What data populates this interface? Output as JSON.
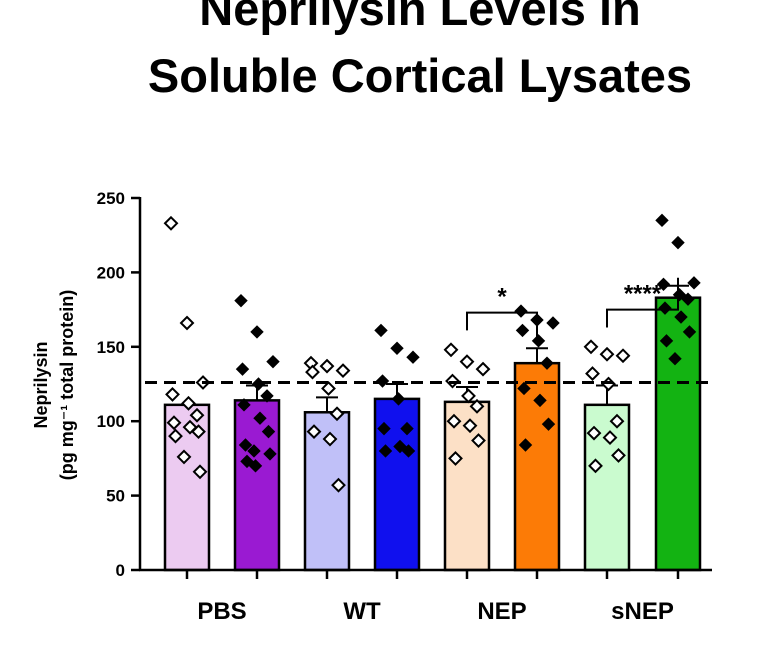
{
  "chart_data": {
    "type": "bar",
    "title_lines": [
      "Neprilysin Levels in",
      "Soluble Cortical Lysates"
    ],
    "ylabel_line1": "Neprilysin",
    "ylabel_line2": "(pg mg⁻¹ total protein)",
    "ylim": [
      0,
      250
    ],
    "yticks": [
      "0",
      "50",
      "100",
      "150",
      "200",
      "250"
    ],
    "categories": [
      "PBS",
      "WT",
      "NEP",
      "sNEP"
    ],
    "reference_line": 126,
    "bars": [
      {
        "group": "PBS",
        "fill": "#eccbf1",
        "marker": "open",
        "mean": 111,
        "sem": 0,
        "points": [
          233,
          166,
          126,
          118,
          112,
          104,
          99,
          96,
          93,
          90,
          76,
          66
        ]
      },
      {
        "group": "PBS",
        "fill": "#9a1ad2",
        "marker": "filled",
        "mean": 114,
        "sem": 10,
        "points": [
          181,
          160,
          140,
          135,
          125,
          117,
          111,
          102,
          93,
          84,
          80,
          78,
          73,
          70
        ]
      },
      {
        "group": "WT",
        "fill": "#c0c0f8",
        "marker": "open",
        "mean": 106,
        "sem": 10,
        "points": [
          139,
          137,
          134,
          133,
          122,
          105,
          93,
          88,
          57
        ]
      },
      {
        "group": "WT",
        "fill": "#1010ee",
        "marker": "filled",
        "mean": 115,
        "sem": 10,
        "points": [
          161,
          149,
          143,
          127,
          115,
          95,
          95,
          83,
          80,
          80
        ]
      },
      {
        "group": "NEP",
        "fill": "#fce0c6",
        "marker": "open",
        "mean": 113,
        "sem": 10,
        "points": [
          148,
          140,
          135,
          127,
          117,
          110,
          100,
          97,
          87,
          75
        ]
      },
      {
        "group": "NEP",
        "fill": "#fc7b06",
        "marker": "filled",
        "mean": 139,
        "sem": 10,
        "points": [
          174,
          168,
          166,
          161,
          154,
          139,
          122,
          114,
          98,
          84
        ]
      },
      {
        "group": "sNEP",
        "fill": "#cafbcf",
        "marker": "open",
        "mean": 111,
        "sem": 13,
        "points": [
          150,
          145,
          144,
          132,
          125,
          100,
          92,
          89,
          77,
          70
        ]
      },
      {
        "group": "sNEP",
        "fill": "#13b312",
        "marker": "filled",
        "mean": 183,
        "sem": 8,
        "points": [
          235,
          220,
          193,
          192,
          185,
          182,
          176,
          170,
          160,
          154,
          142
        ]
      }
    ],
    "significance": [
      {
        "left_bar": 4,
        "right_bar": 5,
        "label": "*",
        "bracket_y": 173
      },
      {
        "left_bar": 6,
        "right_bar": 7,
        "label": "****",
        "bracket_y": 175
      }
    ],
    "grid": false,
    "legend": "none"
  }
}
